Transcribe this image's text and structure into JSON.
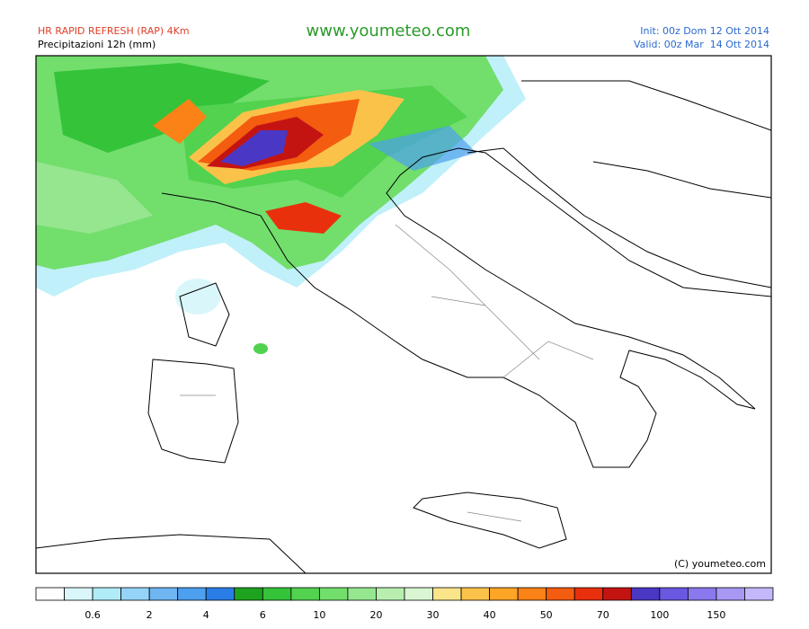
{
  "header": {
    "model": "HR RAPID REFRESH (RAP) 4Km",
    "field": "Precipitazioni 12h (mm)",
    "site": "www.youmeteo.com",
    "init": "Init: 00z Dom 12 Ott 2014",
    "valid": "Valid: 00z Mar  14 Ott 2014"
  },
  "map": {
    "copyright": "(C) youmeteo.com"
  },
  "legend": {
    "colors": [
      "#ffffff",
      "#d9f7fb",
      "#b0ecf8",
      "#94d4f8",
      "#6fb5f2",
      "#4d9ff0",
      "#2a7de6",
      "#1ea31e",
      "#35c33a",
      "#52d24f",
      "#72de6c",
      "#96e690",
      "#b8efb0",
      "#d8f6d2",
      "#fbe58a",
      "#fbc24a",
      "#fca526",
      "#fa8216",
      "#f45c10",
      "#e8300c",
      "#c41412",
      "#4a38c4",
      "#6a58e0",
      "#8a78ee",
      "#a898f4",
      "#c4b8fa"
    ],
    "labels": [
      0.6,
      2,
      4,
      6,
      10,
      20,
      30,
      40,
      50,
      70,
      100,
      150
    ]
  }
}
